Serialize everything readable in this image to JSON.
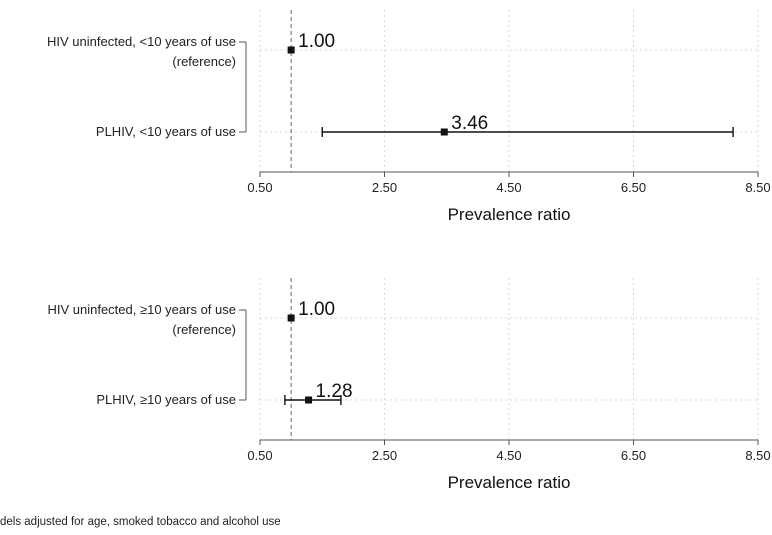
{
  "chart_data": [
    {
      "type": "forest",
      "xlabel": "Prevalence ratio",
      "xlim": [
        0.5,
        8.5
      ],
      "x_ticks": [
        "0.50",
        "2.50",
        "4.50",
        "6.50",
        "8.50"
      ],
      "reference_line": 1.0,
      "grid": true,
      "rows": [
        {
          "label": [
            "HIV uninfected, <10 years of use",
            "(reference)"
          ],
          "estimate": 1.0,
          "ci": null,
          "value_label": "1.00"
        },
        {
          "label": [
            "PLHIV, <10 years of use"
          ],
          "estimate": 3.46,
          "ci": [
            1.5,
            8.1
          ],
          "value_label": "3.46"
        }
      ]
    },
    {
      "type": "forest",
      "xlabel": "Prevalence ratio",
      "xlim": [
        0.5,
        8.5
      ],
      "x_ticks": [
        "0.50",
        "2.50",
        "4.50",
        "6.50",
        "8.50"
      ],
      "reference_line": 1.0,
      "grid": true,
      "rows": [
        {
          "label": [
            "HIV uninfected, ≥10 years of use",
            "(reference)"
          ],
          "estimate": 1.0,
          "ci": null,
          "value_label": "1.00"
        },
        {
          "label": [
            "PLHIV, ≥10 years of use"
          ],
          "estimate": 1.28,
          "ci": [
            0.9,
            1.8
          ],
          "value_label": "1.28"
        }
      ]
    }
  ],
  "footnote": "dels adjusted for age, smoked tobacco and alcohol use",
  "colors": {
    "axis": "#555555",
    "grid": "#d9d9d9",
    "marker": "#111111",
    "ref_line": "#666666"
  }
}
